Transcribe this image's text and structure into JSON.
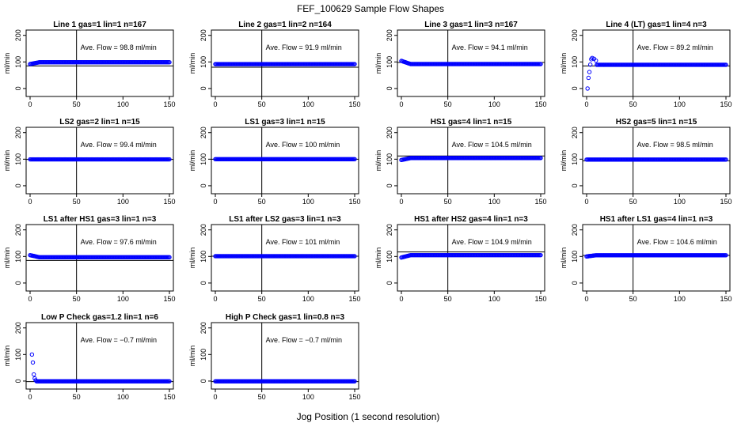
{
  "figure": {
    "title": "FEF_100629  Sample Flow Shapes",
    "xlabel": "Jog Position (1 second resolution)",
    "ave_prefix": "Ave. Flow = ",
    "ave_unit": "ml/min",
    "colors": {
      "points": "#0000ff",
      "frame": "#000000",
      "reference_line": "#000000"
    }
  },
  "chart_data": [
    {
      "type": "scatter",
      "title": "Line 1 gas=1 lin=1 n=167",
      "ylabel": "ml/min",
      "ave_flow": "98.8",
      "xlim": [
        0,
        150
      ],
      "ylim": [
        -30,
        220
      ],
      "xticks": [
        0,
        50,
        100,
        150
      ],
      "yticks": [
        0,
        100,
        200
      ],
      "vline_x": 50,
      "hline_y": 85,
      "start": 92,
      "level": 98.8
    },
    {
      "type": "scatter",
      "title": "Line 2 gas=1 lin=2 n=164",
      "ylabel": "ml/min",
      "ave_flow": "91.9",
      "xlim": [
        0,
        150
      ],
      "ylim": [
        -30,
        220
      ],
      "xticks": [
        0,
        50,
        100,
        150
      ],
      "yticks": [
        0,
        100,
        200
      ],
      "vline_x": 50,
      "hline_y": 80,
      "start": 91.9,
      "level": 91.9
    },
    {
      "type": "scatter",
      "title": "Line 3 gas=1 lin=3 n=167",
      "ylabel": "ml/min",
      "ave_flow": "94.1",
      "xlim": [
        0,
        150
      ],
      "ylim": [
        -30,
        220
      ],
      "xticks": [
        0,
        50,
        100,
        150
      ],
      "yticks": [
        0,
        100,
        200
      ],
      "vline_x": 50,
      "hline_y": 98,
      "start": 104,
      "level": 92
    },
    {
      "type": "scatter",
      "title": "Line 4 (LT) gas=1 lin=4 n=3",
      "ylabel": "ml/min",
      "ave_flow": "89.2",
      "xlim": [
        0,
        150
      ],
      "ylim": [
        -30,
        220
      ],
      "xticks": [
        0,
        50,
        100,
        150
      ],
      "yticks": [
        0,
        100,
        200
      ],
      "vline_x": 50,
      "hline_y": 85,
      "initial_points": [
        [
          1,
          0
        ],
        [
          2,
          40
        ],
        [
          3,
          62
        ],
        [
          4,
          90
        ],
        [
          5,
          110
        ],
        [
          6,
          115
        ],
        [
          8,
          112
        ],
        [
          10,
          105
        ]
      ],
      "level": 89.2
    },
    {
      "type": "scatter",
      "title": "LS2 gas=2 lin=1 n=15",
      "ylabel": "ml/min",
      "ave_flow": "99.4",
      "xlim": [
        0,
        150
      ],
      "ylim": [
        -30,
        220
      ],
      "xticks": [
        0,
        50,
        100,
        150
      ],
      "yticks": [
        0,
        100,
        200
      ],
      "vline_x": 50,
      "hline_y": 99,
      "start": 99.4,
      "level": 99.4
    },
    {
      "type": "scatter",
      "title": "LS1 gas=3 lin=1 n=15",
      "ylabel": "ml/min",
      "ave_flow": "100",
      "xlim": [
        0,
        150
      ],
      "ylim": [
        -30,
        220
      ],
      "xticks": [
        0,
        50,
        100,
        150
      ],
      "yticks": [
        0,
        100,
        200
      ],
      "vline_x": 50,
      "hline_y": 100,
      "start": 100,
      "level": 100
    },
    {
      "type": "scatter",
      "title": "HS1 gas=4 lin=1 n=15",
      "ylabel": "ml/min",
      "ave_flow": "104.5",
      "xlim": [
        0,
        150
      ],
      "ylim": [
        -30,
        220
      ],
      "xticks": [
        0,
        50,
        100,
        150
      ],
      "yticks": [
        0,
        100,
        200
      ],
      "vline_x": 50,
      "hline_y": 112,
      "start": 97,
      "level": 104.5
    },
    {
      "type": "scatter",
      "title": "HS2 gas=5 lin=1 n=15",
      "ylabel": "ml/min",
      "ave_flow": "98.5",
      "xlim": [
        0,
        150
      ],
      "ylim": [
        -30,
        220
      ],
      "xticks": [
        0,
        50,
        100,
        150
      ],
      "yticks": [
        0,
        100,
        200
      ],
      "vline_x": 50,
      "hline_y": 94,
      "start": 98.5,
      "level": 98.5
    },
    {
      "type": "scatter",
      "title": "LS1 after HS1 gas=3 lin=1 n=3",
      "ylabel": "ml/min",
      "ave_flow": "97.6",
      "xlim": [
        0,
        150
      ],
      "ylim": [
        -30,
        220
      ],
      "xticks": [
        0,
        50,
        100,
        150
      ],
      "yticks": [
        0,
        100,
        200
      ],
      "vline_x": 50,
      "hline_y": 85,
      "start": 105,
      "level": 97
    },
    {
      "type": "scatter",
      "title": "LS1 after LS2 gas=3 lin=1 n=3",
      "ylabel": "ml/min",
      "ave_flow": "101",
      "xlim": [
        0,
        150
      ],
      "ylim": [
        -30,
        220
      ],
      "xticks": [
        0,
        50,
        100,
        150
      ],
      "yticks": [
        0,
        100,
        200
      ],
      "vline_x": 50,
      "hline_y": 101,
      "start": 101,
      "level": 101
    },
    {
      "type": "scatter",
      "title": "HS1 after HS2 gas=4 lin=1 n=3",
      "ylabel": "ml/min",
      "ave_flow": "104.9",
      "xlim": [
        0,
        150
      ],
      "ylim": [
        -30,
        220
      ],
      "xticks": [
        0,
        50,
        100,
        150
      ],
      "yticks": [
        0,
        100,
        200
      ],
      "vline_x": 50,
      "hline_y": 117,
      "start": 96,
      "level": 105
    },
    {
      "type": "scatter",
      "title": "HS1 after LS1 gas=4 lin=1 n=3",
      "ylabel": "ml/min",
      "ave_flow": "104.6",
      "xlim": [
        0,
        150
      ],
      "ylim": [
        -30,
        220
      ],
      "xticks": [
        0,
        50,
        100,
        150
      ],
      "yticks": [
        0,
        100,
        200
      ],
      "vline_x": 50,
      "hline_y": 104,
      "start": 100,
      "level": 104.6
    },
    {
      "type": "scatter",
      "title": "Low P Check gas=1.2 lin=1 n=6",
      "ylabel": "ml/min",
      "ave_flow": "−0.7",
      "xlim": [
        0,
        150
      ],
      "ylim": [
        -30,
        220
      ],
      "xticks": [
        0,
        50,
        100,
        150
      ],
      "yticks": [
        0,
        100,
        200
      ],
      "vline_x": 50,
      "hline_y": -2,
      "initial_points": [
        [
          2,
          100
        ],
        [
          3,
          70
        ],
        [
          4,
          25
        ],
        [
          5,
          10
        ],
        [
          6,
          3
        ]
      ],
      "level": -0.7
    },
    {
      "type": "scatter",
      "title": "High P Check gas=1 lin=0.8 n=3",
      "ylabel": "ml/min",
      "ave_flow": "−0.7",
      "xlim": [
        0,
        150
      ],
      "ylim": [
        -30,
        220
      ],
      "xticks": [
        0,
        50,
        100,
        150
      ],
      "yticks": [
        0,
        100,
        200
      ],
      "vline_x": 50,
      "hline_y": -2,
      "start": -0.7,
      "level": -0.7
    }
  ]
}
